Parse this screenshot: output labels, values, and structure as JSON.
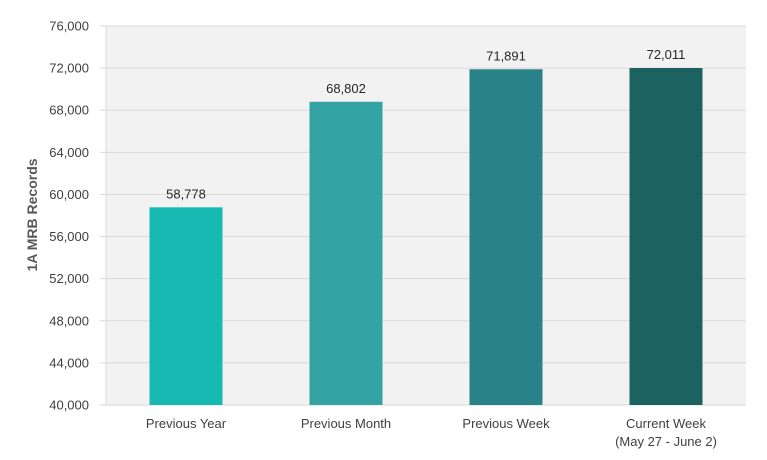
{
  "chart_data": {
    "type": "bar",
    "title": "",
    "xlabel": "",
    "ylabel": "1A MRB Records",
    "ylim": [
      40000,
      76000
    ],
    "ytick_step": 4000,
    "ytick_labels": [
      "40,000",
      "44,000",
      "48,000",
      "52,000",
      "56,000",
      "60,000",
      "64,000",
      "68,000",
      "72,000",
      "76,000"
    ],
    "grid": true,
    "legend": "none",
    "plot_background": "#f2f2f2",
    "gridline_color": "#d9d9d9",
    "categories": [
      [
        "Previous Year"
      ],
      [
        "Previous Month"
      ],
      [
        "Previous Week"
      ],
      [
        "Current Week",
        "(May 27 - June 2)"
      ]
    ],
    "values": [
      58778,
      68802,
      71891,
      72011
    ],
    "data_labels": [
      "58,778",
      "68,802",
      "71,891",
      "72,011"
    ],
    "bar_colors": [
      "#17bab3",
      "#33a3a3",
      "#288287",
      "#1c6260"
    ]
  }
}
